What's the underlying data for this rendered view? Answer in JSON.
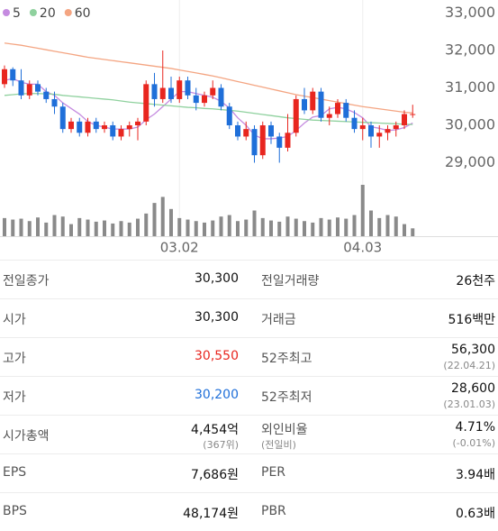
{
  "chart_data": {
    "type": "candlestick",
    "legend": [
      {
        "name": "5",
        "color": "#c58be0"
      },
      {
        "name": "20",
        "color": "#8fd19e"
      },
      {
        "name": "60",
        "color": "#f4a582"
      }
    ],
    "categories": [
      null,
      null,
      null,
      null,
      null,
      null,
      null,
      null,
      null,
      null,
      null,
      null,
      null,
      null,
      null,
      null,
      null,
      null,
      null,
      null,
      null,
      "03.02",
      null,
      null,
      null,
      null,
      null,
      null,
      null,
      null,
      null,
      null,
      null,
      null,
      null,
      null,
      null,
      null,
      null,
      null,
      null,
      null,
      null,
      "04.03",
      null,
      null,
      null,
      null,
      null,
      null
    ],
    "open": [
      31100,
      31500,
      31200,
      30800,
      31100,
      30900,
      30700,
      30500,
      29900,
      30100,
      29800,
      30100,
      29900,
      30000,
      29700,
      29900,
      30000,
      30100,
      31100,
      30700,
      31000,
      30700,
      31200,
      30800,
      30600,
      30800,
      31000,
      30500,
      30000,
      29700,
      29900,
      29200,
      30000,
      29700,
      29400,
      29800,
      30700,
      30400,
      30900,
      30200,
      30300,
      30600,
      30200,
      29900,
      30000,
      29700,
      29800,
      29900,
      30000,
      30300
    ],
    "high": [
      31600,
      31550,
      31500,
      31200,
      31200,
      31000,
      30900,
      30600,
      30200,
      30200,
      30200,
      30200,
      30100,
      30100,
      30000,
      30100,
      30200,
      31200,
      31400,
      32000,
      31300,
      31300,
      31300,
      31000,
      30900,
      31200,
      31100,
      30600,
      30100,
      30100,
      30000,
      30100,
      30100,
      29800,
      30300,
      30800,
      31000,
      31000,
      31000,
      30500,
      30700,
      30700,
      30400,
      30200,
      30100,
      30000,
      30000,
      30100,
      30400,
      30550
    ],
    "low": [
      31000,
      31050,
      30700,
      30700,
      30800,
      30600,
      30300,
      29800,
      29800,
      29700,
      29700,
      29800,
      29800,
      29600,
      29600,
      29700,
      29600,
      30000,
      30500,
      30600,
      30600,
      30600,
      30700,
      30400,
      30500,
      30700,
      30400,
      29900,
      29600,
      29600,
      29000,
      29100,
      29500,
      29000,
      29300,
      29700,
      30300,
      30300,
      30100,
      30000,
      30200,
      30100,
      29800,
      29600,
      29400,
      29400,
      29600,
      29700,
      29900,
      30200
    ],
    "close": [
      31500,
      31200,
      30800,
      31100,
      30900,
      30700,
      30500,
      29900,
      30100,
      29800,
      30100,
      29900,
      30000,
      29700,
      29900,
      30000,
      30100,
      31100,
      30700,
      31000,
      30700,
      31200,
      30800,
      30600,
      30800,
      31000,
      30500,
      30000,
      29700,
      29900,
      29200,
      30000,
      29700,
      29400,
      29800,
      30700,
      30400,
      30900,
      30200,
      30300,
      30600,
      30200,
      29900,
      30000,
      29700,
      29800,
      29900,
      30000,
      30300,
      30300
    ],
    "volume": [
      60,
      55,
      58,
      50,
      62,
      45,
      70,
      65,
      40,
      60,
      55,
      48,
      52,
      42,
      50,
      45,
      58,
      75,
      110,
      130,
      90,
      60,
      55,
      50,
      45,
      52,
      65,
      70,
      50,
      55,
      85,
      60,
      52,
      48,
      65,
      58,
      50,
      45,
      60,
      55,
      62,
      58,
      70,
      170,
      85,
      60,
      70,
      65,
      40,
      26
    ],
    "series": [
      {
        "name": "5",
        "color": "#c58be0",
        "values": [
          31200,
          31250,
          31150,
          31100,
          31100,
          30900,
          30800,
          30600,
          30450,
          30300,
          30100,
          30000,
          29950,
          29900,
          29900,
          29900,
          29950,
          30150,
          30300,
          30500,
          30700,
          30900,
          30900,
          30850,
          30800,
          30750,
          30640,
          30460,
          30200,
          30000,
          29740,
          29640,
          29640,
          29660,
          29700,
          29860,
          30060,
          30220,
          30260,
          30440,
          30480,
          30440,
          30340,
          30200,
          29960,
          29920,
          29860,
          29880,
          29940,
          30060
        ]
      },
      {
        "name": "20",
        "color": "#8fd19e",
        "values": [
          30800,
          30820,
          30840,
          30850,
          30850,
          30840,
          30830,
          30800,
          30780,
          30760,
          30740,
          30720,
          30700,
          30680,
          30650,
          30620,
          30600,
          30580,
          30560,
          30540,
          30520,
          30500,
          30480,
          30470,
          30450,
          30440,
          30420,
          30400,
          30380,
          30350,
          30320,
          30290,
          30260,
          30230,
          30200,
          30180,
          30160,
          30140,
          30130,
          30120,
          30110,
          30100,
          30090,
          30080,
          30070,
          30060,
          30050,
          30040,
          30030,
          30020
        ]
      },
      {
        "name": "60",
        "color": "#f4a582",
        "values": [
          32200,
          32170,
          32140,
          32100,
          32060,
          32020,
          31980,
          31940,
          31900,
          31860,
          31820,
          31790,
          31760,
          31730,
          31700,
          31670,
          31640,
          31610,
          31580,
          31550,
          31520,
          31480,
          31440,
          31400,
          31360,
          31320,
          31270,
          31220,
          31170,
          31120,
          31070,
          31020,
          30970,
          30920,
          30870,
          30820,
          30780,
          30740,
          30700,
          30660,
          30620,
          30580,
          30540,
          30500,
          30470,
          30440,
          30410,
          30380,
          30350,
          30330
        ]
      }
    ],
    "up_color": "#e8261f",
    "down_color": "#1f6fd9",
    "volume_color": "#8a8a8a",
    "ylim": [
      28650,
      33350
    ],
    "yticks": [
      {
        "value": 29000,
        "label": "29,000"
      },
      {
        "value": 30000,
        "label": "30,000"
      },
      {
        "value": 31000,
        "label": "31,000"
      },
      {
        "value": 32000,
        "label": "32,000"
      },
      {
        "value": 33000,
        "label": "33,000"
      }
    ]
  },
  "table": {
    "rows": [
      [
        {
          "label": "전일종가",
          "value": "30,300"
        },
        {
          "label": "전일거래량",
          "value": "26천주"
        }
      ],
      [
        {
          "label": "시가",
          "value": "30,300"
        },
        {
          "label": "거래금",
          "value": "516백만"
        }
      ],
      [
        {
          "label": "고가",
          "value": "30,550",
          "color": "#e8261f"
        },
        {
          "label": "52주최고",
          "value": "56,300",
          "sub": "(22.04.21)"
        }
      ],
      [
        {
          "label": "저가",
          "value": "30,200",
          "color": "#1f6fd9"
        },
        {
          "label": "52주최저",
          "value": "28,600",
          "sub": "(23.01.03)"
        }
      ],
      [
        {
          "label": "시가총액",
          "value": "4,454억",
          "sub": "(367위)"
        },
        {
          "label": "외인비율",
          "label_sub": "(전일비)",
          "value": "4.71%",
          "sub": "(-0.01%)"
        }
      ],
      [
        {
          "label": "EPS",
          "value": "7,686원"
        },
        {
          "label": "PER",
          "value": "3.94배"
        }
      ],
      [
        {
          "label": "BPS",
          "value": "48,174원"
        },
        {
          "label": "PBR",
          "value": "0.63배"
        }
      ]
    ]
  }
}
